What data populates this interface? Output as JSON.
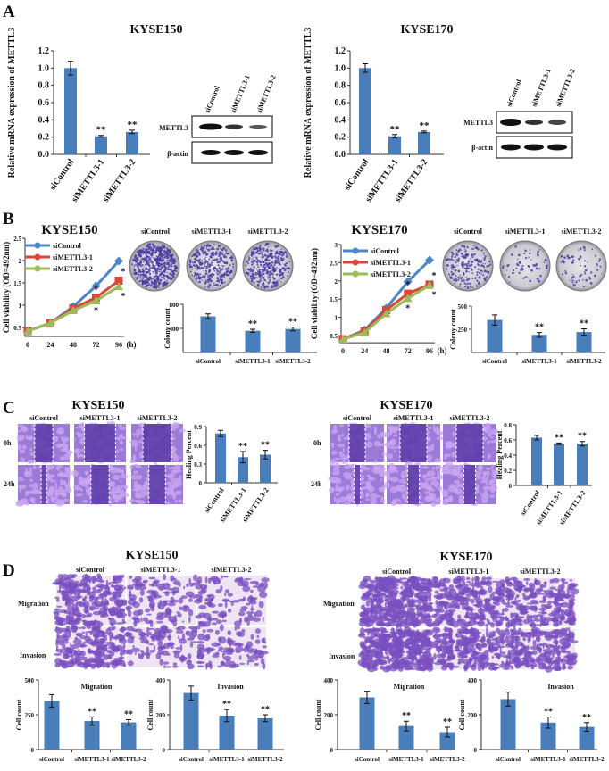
{
  "panels": {
    "A": {
      "letter": "A",
      "blot_left": {
        "lanes": [
          "siControl",
          "siMETTL3-1",
          "siMETTL3-2"
        ],
        "rows": [
          "METTL3",
          "β-actin"
        ]
      },
      "blot_right": {
        "lanes": [
          "siControl",
          "siMETTL3-1",
          "siMETTL3-2"
        ],
        "rows": [
          "METTL3",
          "β-actin"
        ]
      }
    },
    "B": {
      "letter": "B",
      "dishes_left": [
        "siControl",
        "siMETTL3-1",
        "siMETTL3-2"
      ],
      "dishes_right": [
        "siControl",
        "siMETTL3-1",
        "siMETTL3-2"
      ]
    },
    "C": {
      "letter": "C",
      "title_left": "KYSE150",
      "title_right": "KYSE170",
      "columns_left": [
        "siControl",
        "siMETTL3-1",
        "siMETTL3-2"
      ],
      "columns_right": [
        "siControl",
        "siMETTL3-1",
        "siMETTL3-2"
      ],
      "rows_left": [
        "0h",
        "24h"
      ],
      "rows_right": [
        "0h",
        "24h"
      ]
    },
    "D": {
      "letter": "D",
      "title_left": "KYSE150",
      "title_right": "KYSE170",
      "columns_left": [
        "siControl",
        "siMETTL3-1",
        "siMETTL3-2"
      ],
      "columns_right": [
        "siControl",
        "siMETTL3-1",
        "siMETTL3-2"
      ],
      "rows_left": [
        "Migration",
        "Invasion"
      ],
      "rows_right": [
        "Migration",
        "Invasion"
      ]
    }
  },
  "colors": {
    "bar": "#4a7ebb",
    "siControl": "#4a86c8",
    "siMETTL3-1": "#d9463a",
    "siMETTL3-2": "#9bbb59",
    "stain": "#7a4fc0"
  },
  "chart_data": [
    {
      "id": "A-KYSE150",
      "type": "bar",
      "title": "KYSE150",
      "ylabel": "Relative mRNA expression of METTL3",
      "categories": [
        "siControl",
        "siMETTL3-1",
        "siMETTL3-2"
      ],
      "values": [
        1.0,
        0.21,
        0.26
      ],
      "errors": [
        0.08,
        0.01,
        0.02
      ],
      "significance": [
        "",
        "**",
        "**"
      ],
      "ylim": [
        0,
        1.2
      ],
      "yticks": [
        0,
        0.2,
        0.4,
        0.6,
        0.8,
        1.0,
        1.2
      ],
      "ytick_labels": [
        "0.0",
        "0.2",
        "0.4",
        "0.6",
        "0.8",
        "1.0",
        "1.2"
      ]
    },
    {
      "id": "A-KYSE170",
      "type": "bar",
      "title": "KYSE170",
      "ylabel": "Relative mRNA expression of METTL3",
      "categories": [
        "siControl",
        "siMETTL3-1",
        "siMETTL3-2"
      ],
      "values": [
        1.0,
        0.21,
        0.26
      ],
      "errors": [
        0.05,
        0.02,
        0.01
      ],
      "significance": [
        "",
        "**",
        "**"
      ],
      "ylim": [
        0,
        1.2
      ],
      "yticks": [
        0,
        0.2,
        0.4,
        0.6,
        0.8,
        1.0,
        1.2
      ],
      "ytick_labels": [
        "0.0",
        "0.2",
        "0.4",
        "0.6",
        "0.8",
        "1.0",
        "1.2"
      ]
    },
    {
      "id": "B-KYSE150-viability",
      "type": "line",
      "title": "KYSE150",
      "ylabel": "Cell viability (OD=492nm)",
      "xlabel": "(h)",
      "x": [
        0,
        24,
        48,
        72,
        96
      ],
      "xtick_labels": [
        "0",
        "24",
        "48",
        "72",
        "96"
      ],
      "ylim": [
        0.3,
        2.5
      ],
      "yticks": [
        0.5,
        1,
        1.5,
        2,
        2.5
      ],
      "ytick_labels": [
        "0.5",
        "1",
        "1.5",
        "2",
        "2.5"
      ],
      "legend": "top-left",
      "series": [
        {
          "name": "siControl",
          "values": [
            0.42,
            0.6,
            0.97,
            1.43,
            1.99
          ]
        },
        {
          "name": "siMETTL3-1",
          "values": [
            0.42,
            0.6,
            0.93,
            1.17,
            1.55
          ],
          "significance": [
            "",
            "",
            "",
            "*",
            "*"
          ]
        },
        {
          "name": "siMETTL3-2",
          "values": [
            0.42,
            0.6,
            0.88,
            1.1,
            1.42
          ],
          "significance": [
            "",
            "",
            "",
            "*",
            "*"
          ]
        }
      ]
    },
    {
      "id": "B-KYSE150-colony",
      "type": "bar",
      "ylabel": "Colony count",
      "categories": [
        "siControl",
        "siMETTL3-1",
        "siMETTL3-2"
      ],
      "values": [
        600,
        360,
        390
      ],
      "errors": [
        40,
        25,
        30
      ],
      "significance": [
        "",
        "**",
        "**"
      ],
      "ylim": [
        0,
        800
      ],
      "yticks": [
        400,
        800
      ],
      "ytick_labels": [
        "400",
        "800"
      ]
    },
    {
      "id": "B-KYSE170-viability",
      "type": "line",
      "title": "KYSE170",
      "ylabel": "Cell viability (OD=492nm)",
      "xlabel": "(h)",
      "x": [
        0,
        24,
        48,
        72,
        96
      ],
      "xtick_labels": [
        "0",
        "24",
        "48",
        "72",
        "96"
      ],
      "ylim": [
        0.3,
        3
      ],
      "yticks": [
        0.5,
        1,
        1.5,
        2,
        2.5,
        3
      ],
      "ytick_labels": [
        "0.5",
        "1",
        "1.5",
        "2",
        "2.5",
        "3"
      ],
      "legend": "top-left",
      "series": [
        {
          "name": "siControl",
          "values": [
            0.4,
            0.65,
            1.25,
            1.98,
            2.57
          ]
        },
        {
          "name": "siMETTL3-1",
          "values": [
            0.4,
            0.62,
            1.2,
            1.65,
            1.9
          ],
          "significance": [
            "",
            "",
            "",
            "*",
            "*"
          ]
        },
        {
          "name": "siMETTL3-2",
          "values": [
            0.4,
            0.58,
            1.1,
            1.52,
            1.88
          ],
          "significance": [
            "",
            "",
            "",
            "*",
            "*"
          ]
        }
      ]
    },
    {
      "id": "B-KYSE170-colony",
      "type": "bar",
      "ylabel": "Colony count",
      "categories": [
        "siControl",
        "siMETTL3-1",
        "siMETTL3-2"
      ],
      "values": [
        350,
        190,
        220
      ],
      "errors": [
        55,
        25,
        35
      ],
      "significance": [
        "",
        "**",
        "**"
      ],
      "ylim": [
        0,
        500
      ],
      "yticks": [
        250,
        500
      ],
      "ytick_labels": [
        "250",
        "500"
      ]
    },
    {
      "id": "C-KYSE150-healing",
      "type": "bar",
      "ylabel": "Healing Percent",
      "categories": [
        "siControl",
        "siMETTL3-1",
        "siMETTL3-2"
      ],
      "values": [
        0.79,
        0.41,
        0.45
      ],
      "errors": [
        0.05,
        0.09,
        0.07
      ],
      "significance": [
        "",
        "**",
        "**"
      ],
      "ylim": [
        0,
        0.9
      ],
      "yticks": [
        0,
        0.3,
        0.6,
        0.9
      ],
      "ytick_labels": [
        "0",
        "0.3",
        "0.6",
        "0.9"
      ]
    },
    {
      "id": "C-KYSE170-healing",
      "type": "bar",
      "ylabel": "Healing Percent",
      "categories": [
        "siControl",
        "siMETTL3-1",
        "siMETTL3-2"
      ],
      "values": [
        0.63,
        0.55,
        0.55
      ],
      "errors": [
        0.03,
        0.01,
        0.03
      ],
      "significance": [
        "",
        "**",
        "**"
      ],
      "ylim": [
        0,
        0.8
      ],
      "yticks": [
        0,
        0.2,
        0.4,
        0.6,
        0.8
      ],
      "ytick_labels": [
        "0",
        "0.2",
        "0.4",
        "0.6",
        "0.8"
      ]
    },
    {
      "id": "D-KYSE150-migration",
      "type": "bar",
      "title": "Migration",
      "ylabel": "Cell count",
      "categories": [
        "siControl",
        "siMETTL3-1",
        "siMETTL3-2"
      ],
      "values": [
        350,
        205,
        195
      ],
      "errors": [
        45,
        30,
        20
      ],
      "significance": [
        "",
        "**",
        "**"
      ],
      "ylim": [
        0,
        500
      ],
      "yticks": [
        0,
        250,
        500
      ],
      "ytick_labels": [
        "0",
        "250",
        "500"
      ]
    },
    {
      "id": "D-KYSE150-invasion",
      "type": "bar",
      "title": "Invasion",
      "ylabel": "Cell count",
      "categories": [
        "siControl",
        "siMETTL3-1",
        "siMETTL3-2"
      ],
      "values": [
        325,
        195,
        180
      ],
      "errors": [
        40,
        35,
        20
      ],
      "significance": [
        "",
        "**",
        "**"
      ],
      "ylim": [
        0,
        400
      ],
      "yticks": [
        0,
        200,
        400
      ],
      "ytick_labels": [
        "0",
        "200",
        "400"
      ]
    },
    {
      "id": "D-KYSE170-migration",
      "type": "bar",
      "title": "Migration",
      "ylabel": "Cell count",
      "categories": [
        "siControl",
        "siMETTL3-1",
        "siMETTL3-2"
      ],
      "values": [
        300,
        135,
        100
      ],
      "errors": [
        35,
        28,
        28
      ],
      "significance": [
        "",
        "**",
        "**"
      ],
      "ylim": [
        0,
        400
      ],
      "yticks": [
        0,
        200,
        400
      ],
      "ytick_labels": [
        "0",
        "200",
        "400"
      ]
    },
    {
      "id": "D-KYSE170-invasion",
      "type": "bar",
      "title": "Invasion",
      "ylabel": "Cell count",
      "categories": [
        "siControl",
        "siMETTL3-1",
        "siMETTL3-2"
      ],
      "values": [
        290,
        155,
        130
      ],
      "errors": [
        40,
        32,
        25
      ],
      "significance": [
        "",
        "**",
        "**"
      ],
      "ylim": [
        0,
        400
      ],
      "yticks": [
        0,
        200,
        400
      ],
      "ytick_labels": [
        "0",
        "200",
        "400"
      ]
    }
  ]
}
